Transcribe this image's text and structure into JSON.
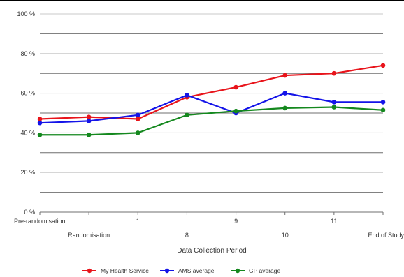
{
  "chart_data": {
    "type": "line",
    "title": "",
    "xlabel": "Data Collection Period",
    "ylabel": "",
    "ylim": [
      0,
      100
    ],
    "yticks": [
      0,
      20,
      40,
      60,
      80,
      100
    ],
    "ytick_labels": [
      "0 %",
      "20 %",
      "40 %",
      "60 %",
      "80 %",
      "100 %"
    ],
    "grid": true,
    "categories": [
      "Pre-randomisation",
      "Randomisation",
      "1",
      "8",
      "9",
      "10",
      "11",
      "End of Study"
    ],
    "legend_position": "bottom",
    "series": [
      {
        "name": "My Health Service",
        "color": "#e8141b",
        "values": [
          47,
          48,
          47,
          58,
          63,
          69,
          70,
          74
        ]
      },
      {
        "name": "AMS average",
        "color": "#1414e8",
        "values": [
          45,
          46,
          49,
          59,
          50,
          60,
          55.5,
          55.5
        ]
      },
      {
        "name": "GP average",
        "color": "#14881e",
        "values": [
          39,
          39,
          40,
          49,
          51,
          52.5,
          53,
          51.5
        ]
      }
    ]
  }
}
